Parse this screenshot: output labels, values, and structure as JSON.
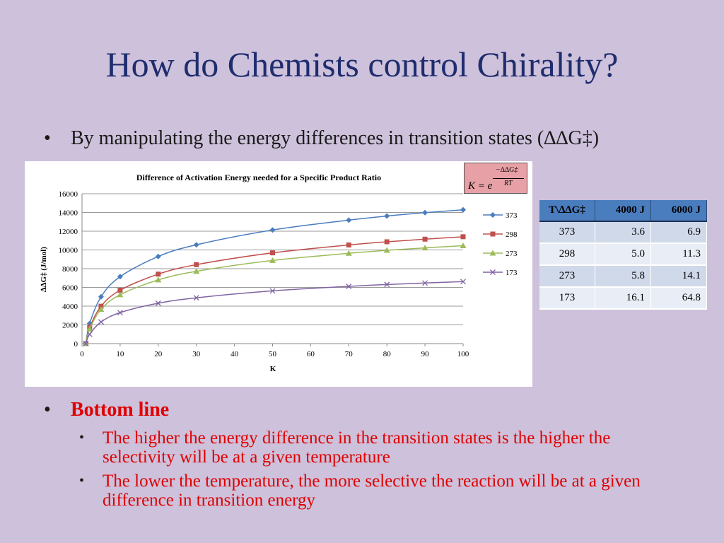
{
  "slide": {
    "title": "How do Chemists control Chirality?",
    "bullet_char": "•",
    "main_bullet": "By manipulating the energy differences in transition states (∆∆G‡)",
    "bottom_line_label": "Bottom line",
    "sub_bullets": [
      "The higher the energy difference in the transition states is the higher the selectivity will be at a given temperature",
      "The lower the temperature, the more selective the reaction will be at a given difference in transition energy"
    ]
  },
  "formula": {
    "lhs": "K = e",
    "numerator": "−∆∆G‡",
    "denominator": "RT"
  },
  "table": {
    "headers": [
      "T\\∆∆G‡",
      "4000 J",
      "6000 J"
    ],
    "rows": [
      [
        "373",
        "3.6",
        "6.9"
      ],
      [
        "298",
        "5.0",
        "11.3"
      ],
      [
        "273",
        "5.8",
        "14.1"
      ],
      [
        "173",
        "16.1",
        "64.8"
      ]
    ]
  },
  "chart_data": {
    "type": "scatter",
    "title": "Difference of Activation Energy needed for a Specific Product Ratio",
    "xlabel": "K",
    "ylabel": "∆∆G‡ (J/mol)",
    "xlim": [
      0,
      100
    ],
    "ylim": [
      0,
      16000
    ],
    "x_ticks": [
      0,
      10,
      20,
      30,
      40,
      50,
      60,
      70,
      80,
      90,
      100
    ],
    "y_ticks": [
      0,
      2000,
      4000,
      6000,
      8000,
      10000,
      12000,
      14000,
      16000
    ],
    "grid": true,
    "legend_position": "right",
    "x": [
      1,
      2,
      5,
      10,
      20,
      30,
      50,
      70,
      80,
      90,
      100
    ],
    "series": [
      {
        "name": "373",
        "color": "#4a7dbe",
        "marker": "diamond",
        "values": [
          0,
          2150,
          5000,
          7150,
          9300,
          10550,
          12130,
          13180,
          13620,
          13980,
          14280
        ]
      },
      {
        "name": "298",
        "color": "#c0504d",
        "marker": "square",
        "values": [
          0,
          1720,
          3990,
          5700,
          7420,
          8430,
          9690,
          10530,
          10870,
          11150,
          11410
        ]
      },
      {
        "name": "273",
        "color": "#9bbb59",
        "marker": "triangle",
        "values": [
          0,
          1570,
          3650,
          5220,
          6800,
          7720,
          8880,
          9640,
          9960,
          10220,
          10450
        ]
      },
      {
        "name": "173",
        "color": "#8064a2",
        "marker": "x",
        "values": [
          0,
          1000,
          2310,
          3310,
          4310,
          4890,
          5630,
          6110,
          6310,
          6470,
          6620
        ]
      }
    ]
  }
}
